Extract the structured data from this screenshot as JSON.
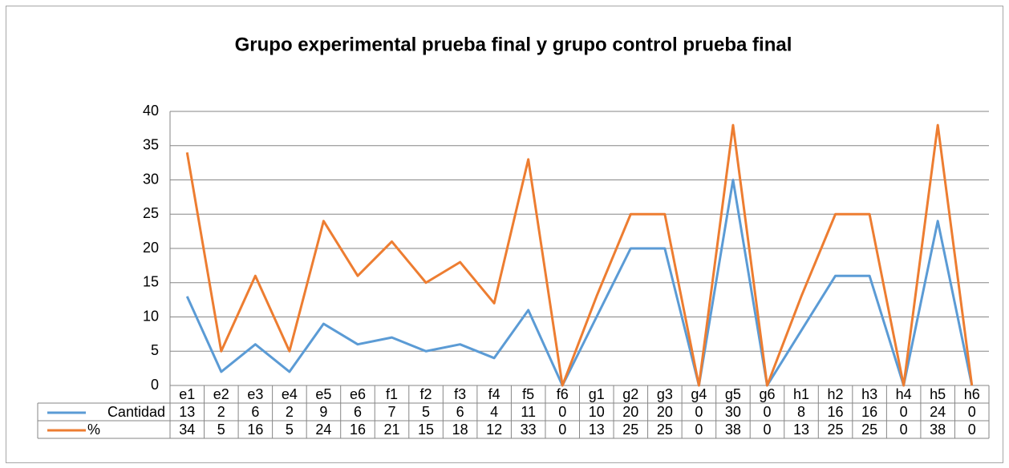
{
  "chart_data": {
    "type": "line",
    "title": "Grupo experimental prueba final  y grupo control prueba final",
    "categories": [
      "e1",
      "e2",
      "e3",
      "e4",
      "e5",
      "e6",
      "f1",
      "f2",
      "f3",
      "f4",
      "f5",
      "f6",
      "g1",
      "g2",
      "g3",
      "g4",
      "g5",
      "g6",
      "h1",
      "h2",
      "h3",
      "h4",
      "h5",
      "h6"
    ],
    "series": [
      {
        "name": "Cantidad",
        "color": "#5b9bd5",
        "values": [
          13,
          2,
          6,
          2,
          9,
          6,
          7,
          5,
          6,
          4,
          11,
          0,
          10,
          20,
          20,
          0,
          30,
          0,
          8,
          16,
          16,
          0,
          24,
          0
        ]
      },
      {
        "name": "%",
        "color": "#ed7d31",
        "values": [
          34,
          5,
          16,
          5,
          24,
          16,
          21,
          15,
          18,
          12,
          33,
          0,
          13,
          25,
          25,
          0,
          38,
          0,
          13,
          25,
          25,
          0,
          38,
          0
        ]
      }
    ],
    "ylim": [
      0,
      40
    ],
    "yticks": [
      0,
      5,
      10,
      15,
      20,
      25,
      30,
      35,
      40
    ],
    "grid": true,
    "data_table": true
  }
}
